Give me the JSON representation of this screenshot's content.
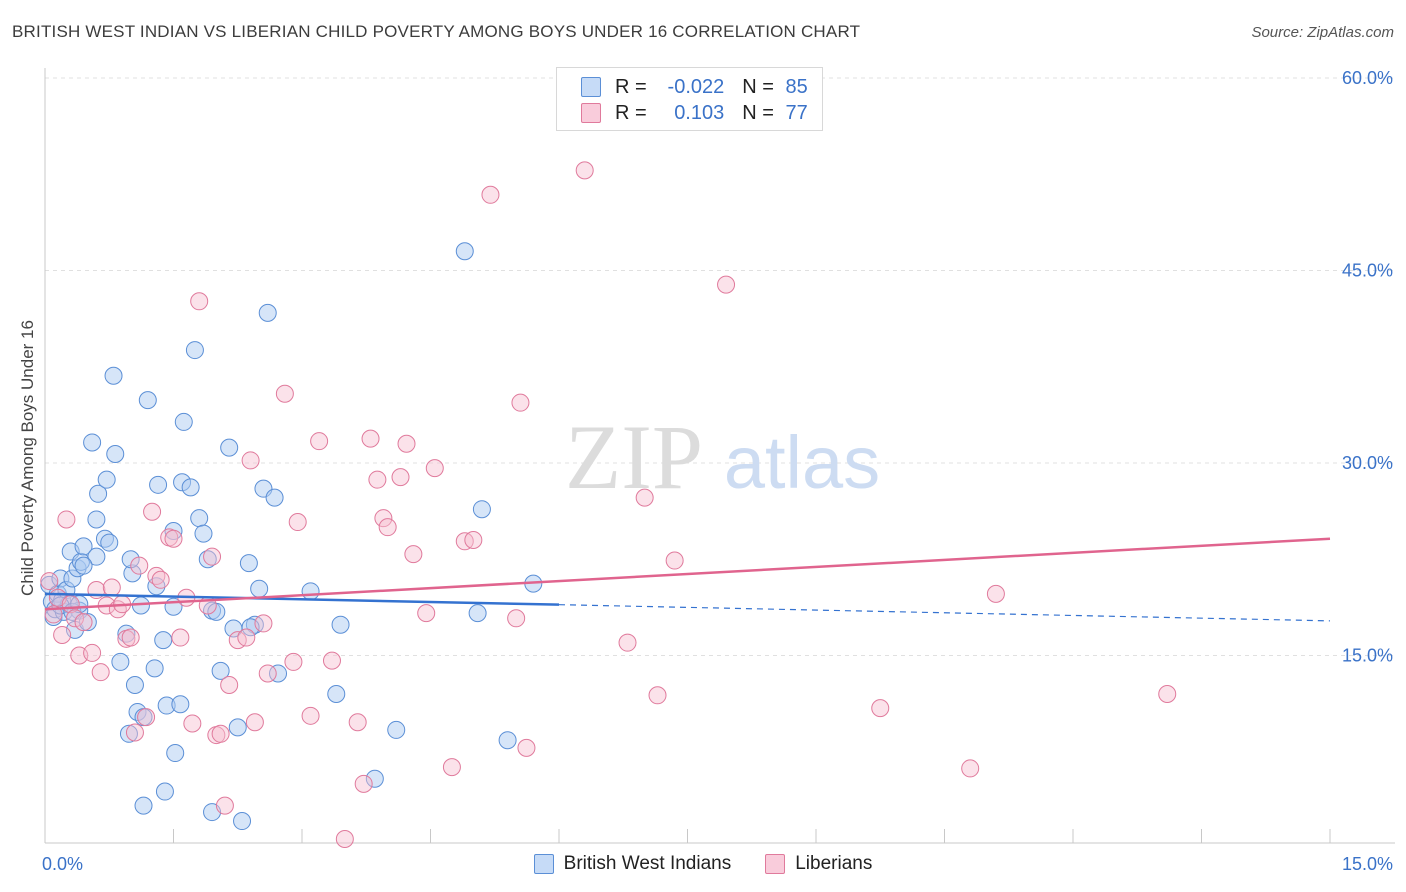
{
  "title": "BRITISH WEST INDIAN VS LIBERIAN CHILD POVERTY AMONG BOYS UNDER 16 CORRELATION CHART",
  "source": "Source: ZipAtlas.com",
  "watermark": {
    "part1": "ZIP",
    "part2": "atlas"
  },
  "legend": {
    "rows": [
      {
        "r_label": "R = ",
        "r_value": "-0.022",
        "n_label": "N = ",
        "n_value": "85"
      },
      {
        "r_label": "R = ",
        "r_value": "0.103",
        "n_label": "N = ",
        "n_value": "77"
      }
    ]
  },
  "bottom_legend": [
    "British West Indians",
    "Liberians"
  ],
  "colors": {
    "blue_fill": "#aecbf2",
    "blue_stroke": "#5b8fd6",
    "blue_line": "#3472d0",
    "pink_fill": "#f6bfd0",
    "pink_stroke": "#e07a9c",
    "pink_line": "#e0648e",
    "tick_text": "#3a72c8"
  },
  "chart_data": {
    "type": "scatter",
    "title": "BRITISH WEST INDIAN VS LIBERIAN CHILD POVERTY AMONG BOYS UNDER 16 CORRELATION CHART",
    "xlabel": "",
    "ylabel": "Child Poverty Among Boys Under 16",
    "xlim": [
      0,
      15
    ],
    "ylim": [
      0,
      60
    ],
    "x_tick_labels": [
      "0.0%",
      "15.0%"
    ],
    "y_ticks": [
      15,
      30,
      45,
      60
    ],
    "y_tick_labels": [
      "15.0%",
      "30.0%",
      "45.0%",
      "60.0%"
    ],
    "grid": true,
    "legend_position": "top-center",
    "series": [
      {
        "name": "British West Indians",
        "color": "#aecbf2",
        "trend": {
          "x": [
            0,
            15
          ],
          "y": [
            19.8,
            17.7
          ],
          "solid_until_x": 6.0
        },
        "points": [
          [
            0.05,
            20.5
          ],
          [
            0.08,
            19.2
          ],
          [
            0.1,
            18.0
          ],
          [
            0.12,
            18.6
          ],
          [
            0.15,
            19.8
          ],
          [
            0.18,
            21.0
          ],
          [
            0.2,
            19.3
          ],
          [
            0.22,
            18.4
          ],
          [
            0.25,
            20.1
          ],
          [
            0.28,
            19.0
          ],
          [
            0.3,
            23.1
          ],
          [
            0.32,
            21.0
          ],
          [
            0.35,
            17.0
          ],
          [
            0.38,
            21.8
          ],
          [
            0.4,
            18.5
          ],
          [
            0.42,
            22.3
          ],
          [
            0.45,
            23.5
          ],
          [
            0.5,
            17.6
          ],
          [
            0.55,
            31.6
          ],
          [
            0.6,
            25.6
          ],
          [
            0.62,
            27.6
          ],
          [
            0.7,
            24.1
          ],
          [
            0.72,
            28.7
          ],
          [
            0.75,
            23.8
          ],
          [
            0.8,
            36.8
          ],
          [
            0.82,
            30.7
          ],
          [
            0.88,
            14.5
          ],
          [
            0.95,
            16.7
          ],
          [
            0.98,
            8.9
          ],
          [
            1.02,
            21.4
          ],
          [
            1.05,
            12.7
          ],
          [
            1.08,
            10.6
          ],
          [
            1.12,
            18.9
          ],
          [
            1.15,
            10.2
          ],
          [
            1.2,
            34.9
          ],
          [
            1.28,
            14.0
          ],
          [
            1.3,
            20.4
          ],
          [
            1.32,
            28.3
          ],
          [
            1.38,
            16.2
          ],
          [
            1.4,
            4.4
          ],
          [
            1.42,
            11.1
          ],
          [
            1.5,
            24.7
          ],
          [
            1.52,
            7.4
          ],
          [
            1.58,
            11.2
          ],
          [
            1.6,
            28.5
          ],
          [
            1.62,
            33.2
          ],
          [
            1.7,
            28.1
          ],
          [
            1.75,
            38.8
          ],
          [
            1.8,
            25.7
          ],
          [
            1.85,
            24.5
          ],
          [
            1.9,
            22.5
          ],
          [
            1.95,
            18.5
          ],
          [
            2.05,
            13.8
          ],
          [
            2.15,
            31.2
          ],
          [
            2.2,
            17.1
          ],
          [
            2.25,
            9.4
          ],
          [
            2.3,
            2.1
          ],
          [
            2.38,
            22.2
          ],
          [
            2.45,
            17.4
          ],
          [
            2.5,
            20.2
          ],
          [
            2.55,
            28.0
          ],
          [
            2.6,
            41.7
          ],
          [
            2.68,
            27.3
          ],
          [
            2.72,
            13.6
          ],
          [
            3.1,
            20.0
          ],
          [
            3.4,
            12.0
          ],
          [
            3.45,
            17.4
          ],
          [
            3.85,
            5.4
          ],
          [
            4.1,
            9.2
          ],
          [
            4.9,
            46.5
          ],
          [
            5.05,
            18.3
          ],
          [
            5.1,
            26.4
          ],
          [
            5.4,
            8.4
          ],
          [
            5.7,
            20.6
          ],
          [
            0.6,
            22.7
          ],
          [
            1.15,
            3.3
          ],
          [
            0.45,
            22.0
          ],
          [
            1.0,
            22.5
          ],
          [
            2.0,
            18.4
          ],
          [
            0.18,
            18.9
          ],
          [
            0.32,
            18.4
          ],
          [
            1.5,
            18.8
          ],
          [
            2.4,
            17.2
          ],
          [
            1.95,
            2.8
          ],
          [
            0.4,
            19.0
          ]
        ]
      },
      {
        "name": "Liberians",
        "color": "#f6bfd0",
        "trend": {
          "x": [
            0,
            15
          ],
          "y": [
            18.6,
            24.1
          ]
        },
        "points": [
          [
            0.05,
            20.8
          ],
          [
            0.1,
            18.2
          ],
          [
            0.15,
            19.5
          ],
          [
            0.2,
            16.6
          ],
          [
            0.25,
            25.6
          ],
          [
            0.3,
            19.0
          ],
          [
            0.35,
            17.9
          ],
          [
            0.4,
            15.0
          ],
          [
            0.45,
            17.6
          ],
          [
            0.55,
            15.2
          ],
          [
            0.6,
            20.1
          ],
          [
            0.65,
            13.7
          ],
          [
            0.72,
            18.9
          ],
          [
            0.78,
            20.3
          ],
          [
            0.85,
            18.6
          ],
          [
            0.9,
            19.0
          ],
          [
            0.95,
            16.3
          ],
          [
            1.0,
            16.4
          ],
          [
            1.05,
            9.0
          ],
          [
            1.1,
            22.0
          ],
          [
            1.18,
            10.2
          ],
          [
            1.25,
            26.2
          ],
          [
            1.3,
            21.2
          ],
          [
            1.35,
            20.9
          ],
          [
            1.45,
            24.2
          ],
          [
            1.5,
            24.1
          ],
          [
            1.58,
            16.4
          ],
          [
            1.65,
            19.5
          ],
          [
            1.72,
            9.7
          ],
          [
            1.8,
            42.6
          ],
          [
            1.9,
            18.9
          ],
          [
            1.95,
            22.7
          ],
          [
            2.0,
            8.8
          ],
          [
            2.05,
            8.9
          ],
          [
            2.1,
            3.3
          ],
          [
            2.15,
            12.7
          ],
          [
            2.25,
            16.2
          ],
          [
            2.35,
            16.4
          ],
          [
            2.4,
            30.2
          ],
          [
            2.45,
            9.8
          ],
          [
            2.55,
            17.5
          ],
          [
            2.6,
            13.6
          ],
          [
            2.8,
            35.4
          ],
          [
            2.9,
            14.5
          ],
          [
            2.95,
            25.4
          ],
          [
            3.1,
            10.3
          ],
          [
            3.2,
            31.7
          ],
          [
            3.35,
            14.6
          ],
          [
            3.5,
            0.7
          ],
          [
            3.65,
            9.8
          ],
          [
            3.72,
            5.0
          ],
          [
            3.8,
            31.9
          ],
          [
            3.88,
            28.7
          ],
          [
            3.95,
            25.7
          ],
          [
            4.0,
            25.0
          ],
          [
            4.15,
            28.9
          ],
          [
            4.22,
            31.5
          ],
          [
            4.3,
            22.9
          ],
          [
            4.45,
            18.3
          ],
          [
            4.55,
            29.6
          ],
          [
            4.75,
            6.3
          ],
          [
            4.9,
            23.9
          ],
          [
            5.0,
            24.0
          ],
          [
            5.2,
            50.9
          ],
          [
            5.5,
            17.9
          ],
          [
            5.55,
            34.7
          ],
          [
            5.62,
            7.8
          ],
          [
            6.3,
            52.8
          ],
          [
            6.8,
            16.0
          ],
          [
            7.0,
            27.3
          ],
          [
            7.15,
            11.9
          ],
          [
            7.35,
            22.4
          ],
          [
            7.95,
            43.9
          ],
          [
            9.75,
            10.9
          ],
          [
            10.8,
            6.2
          ],
          [
            11.1,
            19.8
          ],
          [
            13.1,
            12.0
          ]
        ]
      }
    ]
  }
}
